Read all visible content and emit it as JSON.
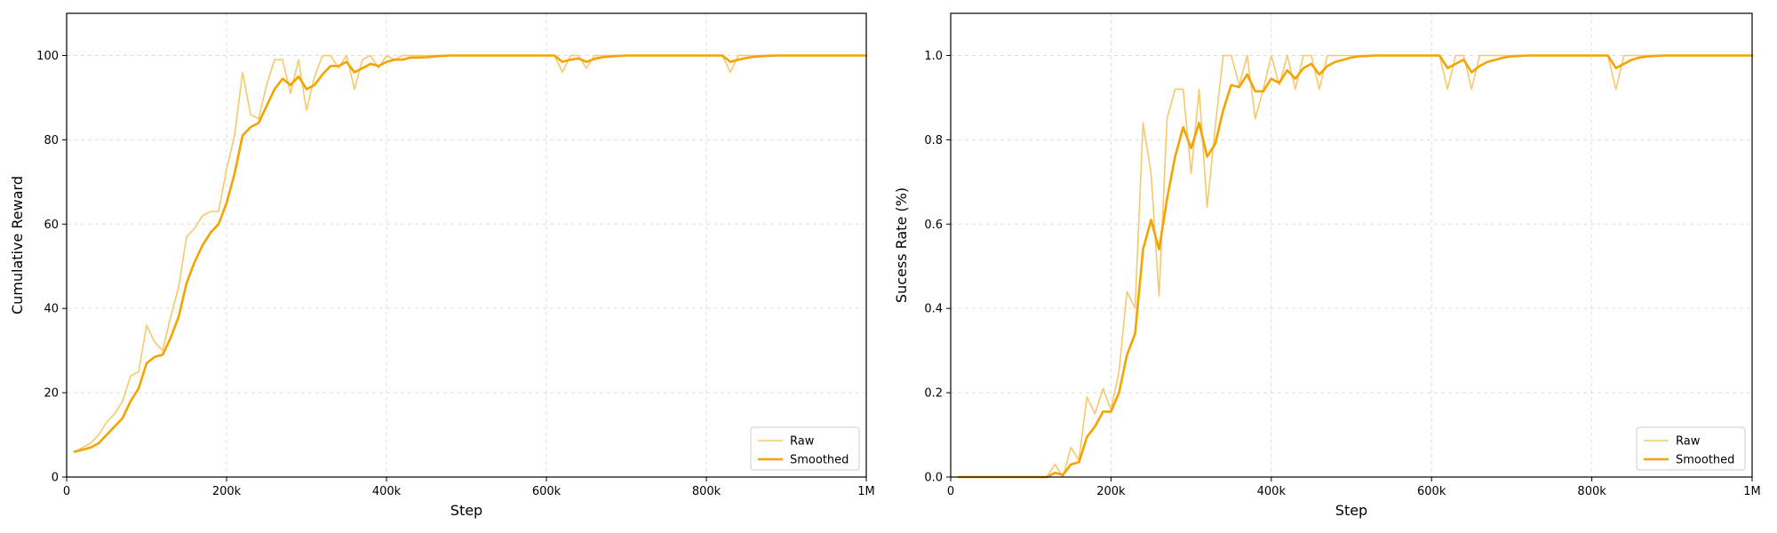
{
  "chart_data": [
    {
      "type": "line",
      "title": "",
      "xlabel": "Step",
      "ylabel": "Cumulative Reward",
      "xlim": [
        0,
        1000000
      ],
      "ylim": [
        0,
        110
      ],
      "xticks": [
        0,
        200000,
        400000,
        600000,
        800000,
        1000000
      ],
      "xtick_labels": [
        "0",
        "200k",
        "400k",
        "600k",
        "800k",
        "1M"
      ],
      "yticks": [
        0,
        20,
        40,
        60,
        80,
        100
      ],
      "ytick_labels": [
        "0",
        "20",
        "40",
        "60",
        "80",
        "100"
      ],
      "grid": true,
      "legend_position": "bottom-right",
      "colors": {
        "raw": "#f6c96a",
        "smoothed": "#f5a300"
      },
      "series": [
        {
          "name": "Raw",
          "x": [
            10000,
            20000,
            30000,
            40000,
            50000,
            60000,
            70000,
            80000,
            90000,
            100000,
            110000,
            120000,
            130000,
            140000,
            150000,
            160000,
            170000,
            180000,
            190000,
            200000,
            210000,
            220000,
            230000,
            240000,
            250000,
            260000,
            270000,
            280000,
            290000,
            300000,
            310000,
            320000,
            330000,
            340000,
            350000,
            360000,
            370000,
            380000,
            390000,
            400000,
            410000,
            420000,
            430000,
            440000,
            450000,
            460000,
            470000,
            480000,
            490000,
            500000,
            510000,
            520000,
            530000,
            540000,
            550000,
            560000,
            570000,
            580000,
            590000,
            600000,
            610000,
            620000,
            630000,
            640000,
            650000,
            660000,
            670000,
            680000,
            690000,
            700000,
            710000,
            720000,
            730000,
            740000,
            750000,
            760000,
            770000,
            780000,
            790000,
            800000,
            810000,
            820000,
            830000,
            840000,
            850000,
            860000,
            870000,
            880000,
            890000,
            900000,
            910000,
            920000,
            930000,
            940000,
            950000,
            960000,
            970000,
            980000,
            990000,
            1000000
          ],
          "values": [
            6,
            7,
            8,
            10,
            13,
            15,
            18,
            24,
            25,
            36,
            32,
            30,
            38,
            45,
            57,
            59,
            62,
            63,
            63,
            73,
            81,
            96,
            86,
            85,
            93,
            99,
            99,
            91,
            99,
            87,
            95,
            100,
            100,
            97,
            100,
            92,
            99,
            100,
            97,
            100,
            99,
            100,
            100,
            100,
            100,
            100,
            100,
            100,
            100,
            100,
            100,
            100,
            100,
            100,
            100,
            100,
            100,
            100,
            100,
            100,
            100,
            96,
            100,
            100,
            97,
            100,
            100,
            100,
            100,
            100,
            100,
            100,
            100,
            100,
            100,
            100,
            100,
            100,
            100,
            100,
            100,
            100,
            96,
            100,
            100,
            100,
            100,
            100,
            100,
            100,
            100,
            100,
            100,
            100,
            100,
            100,
            100,
            100,
            100,
            100
          ]
        },
        {
          "name": "Smoothed",
          "x": [
            10000,
            20000,
            30000,
            40000,
            50000,
            60000,
            70000,
            80000,
            90000,
            100000,
            110000,
            120000,
            130000,
            140000,
            150000,
            160000,
            170000,
            180000,
            190000,
            200000,
            210000,
            220000,
            230000,
            240000,
            250000,
            260000,
            270000,
            280000,
            290000,
            300000,
            310000,
            320000,
            330000,
            340000,
            350000,
            360000,
            370000,
            380000,
            390000,
            400000,
            410000,
            420000,
            430000,
            440000,
            450000,
            460000,
            470000,
            480000,
            490000,
            500000,
            510000,
            520000,
            530000,
            540000,
            550000,
            560000,
            570000,
            580000,
            590000,
            600000,
            610000,
            620000,
            630000,
            640000,
            650000,
            660000,
            670000,
            680000,
            690000,
            700000,
            710000,
            720000,
            730000,
            740000,
            750000,
            760000,
            770000,
            780000,
            790000,
            800000,
            810000,
            820000,
            830000,
            840000,
            850000,
            860000,
            870000,
            880000,
            890000,
            900000,
            910000,
            920000,
            930000,
            940000,
            950000,
            960000,
            970000,
            980000,
            990000,
            1000000
          ],
          "values": [
            6,
            6.5,
            7,
            8,
            10,
            12,
            14,
            18,
            21,
            27,
            28.5,
            29,
            33,
            38,
            46,
            51,
            55,
            58,
            60,
            65,
            72,
            81,
            83,
            84,
            88,
            92,
            94.5,
            93,
            95,
            92,
            93,
            95.5,
            97.5,
            97.5,
            98.5,
            96,
            97,
            98,
            97.5,
            98.5,
            99,
            99,
            99.5,
            99.5,
            99.6,
            99.8,
            99.9,
            100,
            100,
            100,
            100,
            100,
            100,
            100,
            100,
            100,
            100,
            100,
            100,
            100,
            100,
            98.5,
            99,
            99.3,
            98.5,
            99.2,
            99.6,
            99.8,
            99.9,
            100,
            100,
            100,
            100,
            100,
            100,
            100,
            100,
            100,
            100,
            100,
            100,
            100,
            98.5,
            99,
            99.4,
            99.7,
            99.85,
            99.95,
            100,
            100,
            100,
            100,
            100,
            100,
            100,
            100,
            100,
            100,
            100,
            100
          ]
        }
      ]
    },
    {
      "type": "line",
      "title": "",
      "xlabel": "Step",
      "ylabel": "Sucess Rate (%)",
      "xlim": [
        0,
        1000000
      ],
      "ylim": [
        0,
        1.1
      ],
      "xticks": [
        0,
        200000,
        400000,
        600000,
        800000,
        1000000
      ],
      "xtick_labels": [
        "0",
        "200k",
        "400k",
        "600k",
        "800k",
        "1M"
      ],
      "yticks": [
        0,
        0.2,
        0.4,
        0.6,
        0.8,
        1.0
      ],
      "ytick_labels": [
        "0.0",
        "0.2",
        "0.4",
        "0.6",
        "0.8",
        "1.0"
      ],
      "grid": true,
      "legend_position": "bottom-right",
      "colors": {
        "raw": "#f6c96a",
        "smoothed": "#f5a300"
      },
      "series": [
        {
          "name": "Raw",
          "x": [
            10000,
            20000,
            30000,
            40000,
            50000,
            60000,
            70000,
            80000,
            90000,
            100000,
            110000,
            120000,
            130000,
            140000,
            150000,
            160000,
            170000,
            180000,
            190000,
            200000,
            210000,
            220000,
            230000,
            240000,
            250000,
            260000,
            270000,
            280000,
            290000,
            300000,
            310000,
            320000,
            330000,
            340000,
            350000,
            360000,
            370000,
            380000,
            390000,
            400000,
            410000,
            420000,
            430000,
            440000,
            450000,
            460000,
            470000,
            480000,
            490000,
            500000,
            510000,
            520000,
            530000,
            540000,
            550000,
            560000,
            570000,
            580000,
            590000,
            600000,
            610000,
            620000,
            630000,
            640000,
            650000,
            660000,
            670000,
            680000,
            690000,
            700000,
            710000,
            720000,
            730000,
            740000,
            750000,
            760000,
            770000,
            780000,
            790000,
            800000,
            810000,
            820000,
            830000,
            840000,
            850000,
            860000,
            870000,
            880000,
            890000,
            900000,
            910000,
            920000,
            930000,
            940000,
            950000,
            960000,
            970000,
            980000,
            990000,
            1000000
          ],
          "values": [
            0,
            0,
            0,
            0,
            0,
            0,
            0,
            0,
            0,
            0,
            0,
            0,
            0.03,
            0,
            0.07,
            0.04,
            0.19,
            0.15,
            0.21,
            0.16,
            0.25,
            0.44,
            0.4,
            0.84,
            0.72,
            0.43,
            0.85,
            0.92,
            0.92,
            0.72,
            0.92,
            0.64,
            0.83,
            1.0,
            1.0,
            0.93,
            1.0,
            0.85,
            0.92,
            1.0,
            0.93,
            1.0,
            0.92,
            1.0,
            1.0,
            0.92,
            1.0,
            1.0,
            1.0,
            1.0,
            1.0,
            1.0,
            1.0,
            1.0,
            1.0,
            1.0,
            1.0,
            1.0,
            1.0,
            1.0,
            1.0,
            0.92,
            1.0,
            1.0,
            0.92,
            1.0,
            1.0,
            1.0,
            1.0,
            1.0,
            1.0,
            1.0,
            1.0,
            1.0,
            1.0,
            1.0,
            1.0,
            1.0,
            1.0,
            1.0,
            1.0,
            1.0,
            0.92,
            1.0,
            1.0,
            1.0,
            1.0,
            1.0,
            1.0,
            1.0,
            1.0,
            1.0,
            1.0,
            1.0,
            1.0,
            1.0,
            1.0,
            1.0,
            1.0,
            1.0
          ]
        },
        {
          "name": "Smoothed",
          "x": [
            10000,
            20000,
            30000,
            40000,
            50000,
            60000,
            70000,
            80000,
            90000,
            100000,
            110000,
            120000,
            130000,
            140000,
            150000,
            160000,
            170000,
            180000,
            190000,
            200000,
            210000,
            220000,
            230000,
            240000,
            250000,
            260000,
            270000,
            280000,
            290000,
            300000,
            310000,
            320000,
            330000,
            340000,
            350000,
            360000,
            370000,
            380000,
            390000,
            400000,
            410000,
            420000,
            430000,
            440000,
            450000,
            460000,
            470000,
            480000,
            490000,
            500000,
            510000,
            520000,
            530000,
            540000,
            550000,
            560000,
            570000,
            580000,
            590000,
            600000,
            610000,
            620000,
            630000,
            640000,
            650000,
            660000,
            670000,
            680000,
            690000,
            700000,
            710000,
            720000,
            730000,
            740000,
            750000,
            760000,
            770000,
            780000,
            790000,
            800000,
            810000,
            820000,
            830000,
            840000,
            850000,
            860000,
            870000,
            880000,
            890000,
            900000,
            910000,
            920000,
            930000,
            940000,
            950000,
            960000,
            970000,
            980000,
            990000,
            1000000
          ],
          "values": [
            0,
            0,
            0,
            0,
            0,
            0,
            0,
            0,
            0,
            0,
            0,
            0,
            0.01,
            0.005,
            0.03,
            0.035,
            0.095,
            0.12,
            0.155,
            0.155,
            0.2,
            0.29,
            0.34,
            0.54,
            0.61,
            0.54,
            0.66,
            0.76,
            0.83,
            0.78,
            0.84,
            0.76,
            0.79,
            0.87,
            0.93,
            0.925,
            0.955,
            0.915,
            0.915,
            0.945,
            0.935,
            0.965,
            0.945,
            0.97,
            0.98,
            0.955,
            0.975,
            0.985,
            0.99,
            0.995,
            0.998,
            0.999,
            1.0,
            1.0,
            1.0,
            1.0,
            1.0,
            1.0,
            1.0,
            1.0,
            1.0,
            0.97,
            0.98,
            0.99,
            0.96,
            0.975,
            0.985,
            0.99,
            0.995,
            0.998,
            0.999,
            1.0,
            1.0,
            1.0,
            1.0,
            1.0,
            1.0,
            1.0,
            1.0,
            1.0,
            1.0,
            1.0,
            0.97,
            0.98,
            0.99,
            0.995,
            0.998,
            0.999,
            1.0,
            1.0,
            1.0,
            1.0,
            1.0,
            1.0,
            1.0,
            1.0,
            1.0,
            1.0,
            1.0,
            1.0
          ]
        }
      ]
    }
  ]
}
